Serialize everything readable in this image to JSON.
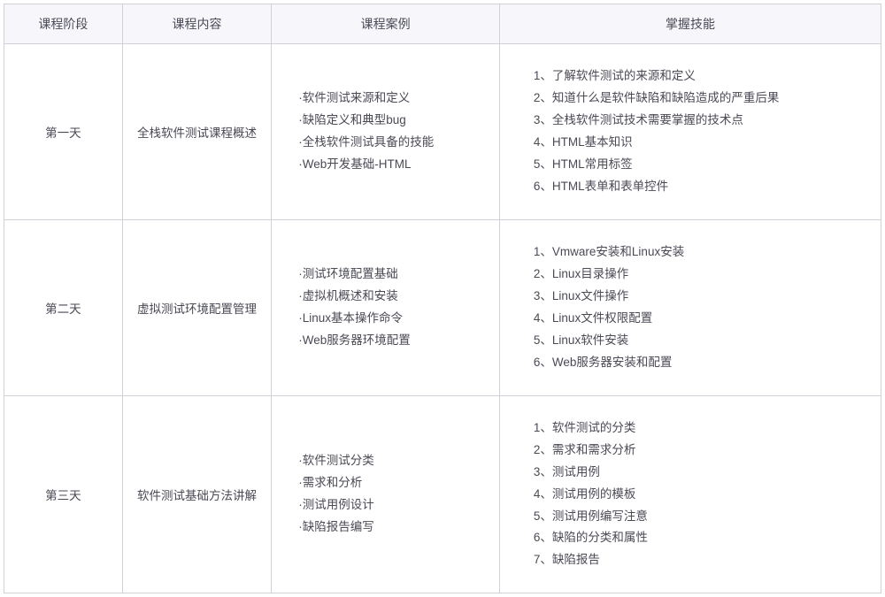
{
  "headers": {
    "phase": "课程阶段",
    "content": "课程内容",
    "case": "课程案例",
    "skill": "掌握技能"
  },
  "columns": {
    "phase_width": "13.5%",
    "content_width": "17%",
    "case_width": "26%",
    "skill_width": "43.5%"
  },
  "colors": {
    "header_bg": "#f7f7fb",
    "border": "#d0d0d6",
    "text": "#4a4a55",
    "body_bg": "#ffffff"
  },
  "typography": {
    "header_fontsize": 14,
    "cell_fontsize": 13.5,
    "line_height": 1.85,
    "font_family": "Microsoft YaHei"
  },
  "rows": [
    {
      "phase": "第一天",
      "content": "全栈软件测试课程概述",
      "cases": [
        "·软件测试来源和定义",
        "·缺陷定义和典型bug",
        "·全栈软件测试具备的技能",
        "·Web开发基础-HTML"
      ],
      "skills": [
        "1、了解软件测试的来源和定义",
        "2、知道什么是软件缺陷和缺陷造成的严重后果",
        "3、全栈软件测试技术需要掌握的技术点",
        "4、HTML基本知识",
        "5、HTML常用标签",
        "6、HTML表单和表单控件"
      ]
    },
    {
      "phase": "第二天",
      "content": "虚拟测试环境配置管理",
      "cases": [
        "·测试环境配置基础",
        "·虚拟机概述和安装",
        "·Linux基本操作命令",
        "·Web服务器环境配置"
      ],
      "skills": [
        "1、Vmware安装和Linux安装",
        "2、Linux目录操作",
        "3、Linux文件操作",
        "4、Linux文件权限配置",
        "5、Linux软件安装",
        "6、Web服务器安装和配置"
      ]
    },
    {
      "phase": "第三天",
      "content": "软件测试基础方法讲解",
      "cases": [
        "·软件测试分类",
        "·需求和分析",
        "·测试用例设计",
        "·缺陷报告编写"
      ],
      "skills": [
        "1、软件测试的分类",
        "2、需求和需求分析",
        "3、测试用例",
        "4、测试用例的模板",
        "5、测试用例编写注意",
        "6、缺陷的分类和属性",
        "7、缺陷报告"
      ]
    }
  ]
}
